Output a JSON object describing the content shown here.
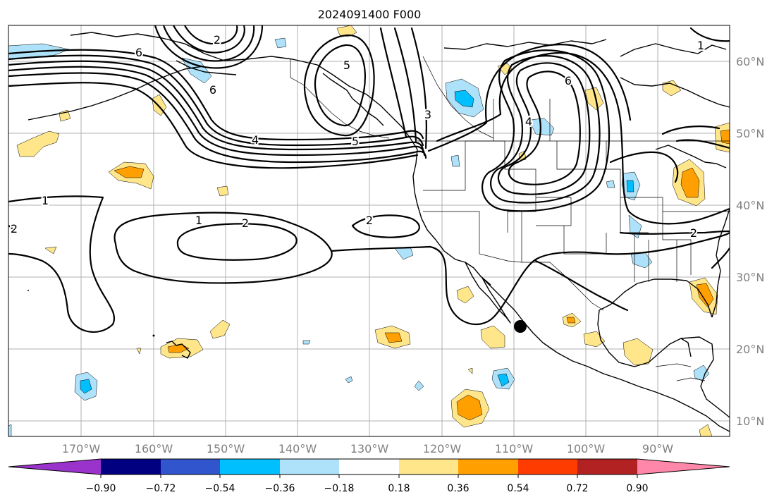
{
  "title": "2024091400 F000",
  "lat_labels": [
    "60°N",
    "50°N",
    "40°N",
    "30°N",
    "20°N",
    "10°N"
  ],
  "lon_labels": [
    "170°W",
    "160°W",
    "150°W",
    "140°W",
    "130°W",
    "120°W",
    "110°W",
    "100°W",
    "90°W"
  ],
  "colorbar": {
    "ticks": [
      "−0.90",
      "−0.72",
      "−0.54",
      "−0.36",
      "−0.18",
      "0.18",
      "0.36",
      "0.54",
      "0.72",
      "0.90"
    ],
    "colors": [
      "#9a33cc",
      "#000080",
      "#3055cc",
      "#00bfff",
      "#aee1fa",
      "#ffffff",
      "#ffe68a",
      "#ffa000",
      "#ff3c00",
      "#b22222",
      "#ff88aa"
    ]
  },
  "contour_labels": [
    "6",
    "2",
    "6",
    "5",
    "4",
    "5",
    "3",
    "6",
    "4",
    "1",
    "1",
    "2",
    "2",
    "2",
    "2",
    "1"
  ],
  "colors": {
    "positive_light": "#ffe68a",
    "positive_mid": "#ffa000",
    "negative_light": "#aee1fa",
    "negative_mid": "#00bfff"
  },
  "marker": "storm-center-dot"
}
